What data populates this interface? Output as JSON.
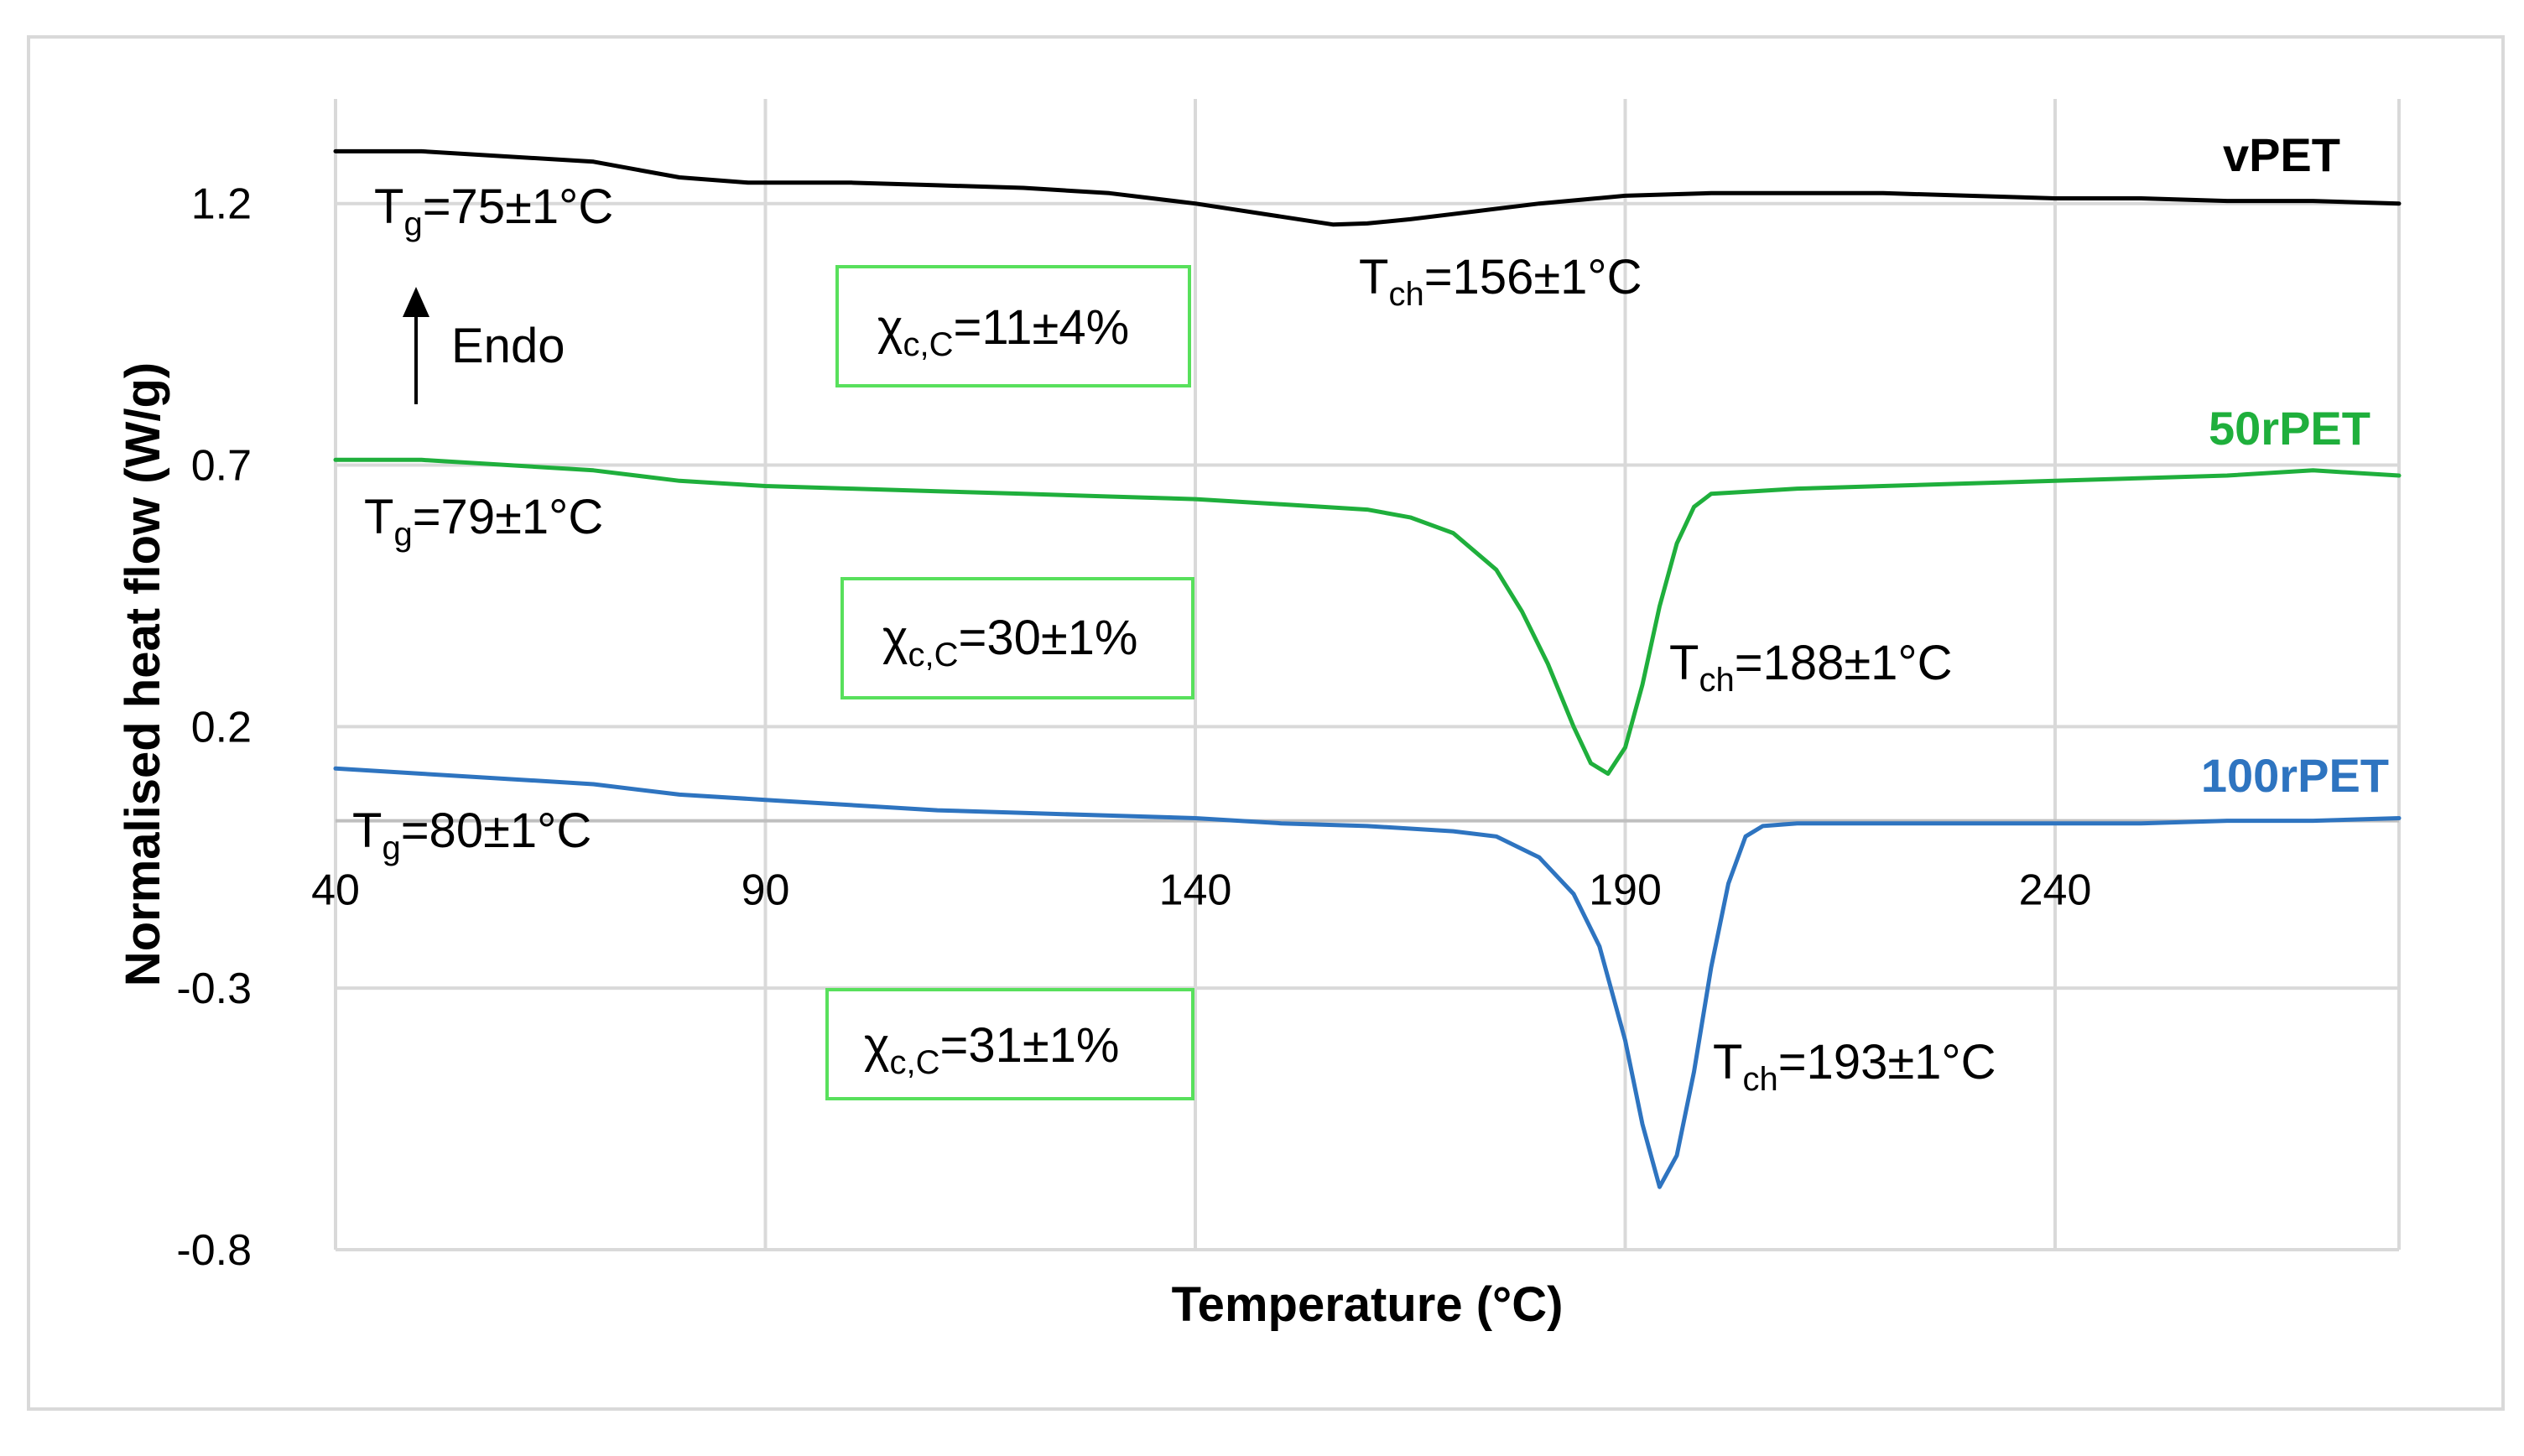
{
  "chart_data": {
    "type": "line",
    "xlabel": "Temperature (°C)",
    "ylabel": "Normalised heat flow (W/g)",
    "xlim": [
      40,
      280
    ],
    "ylim": [
      -0.8,
      1.4
    ],
    "x_ticks": [
      40,
      90,
      140,
      190,
      240
    ],
    "y_ticks": [
      1.2,
      0.7,
      0.2,
      -0.3,
      -0.8
    ],
    "y_tick_labels": [
      "1.2",
      "0.7",
      "0.2",
      "-0.3",
      "-0.8"
    ],
    "x_axis_at_y": 0.02,
    "grid": true,
    "endo_label": "Endo",
    "series": [
      {
        "name": "vPET",
        "color": "#000000",
        "x": [
          40,
          50,
          60,
          70,
          75,
          80,
          88,
          100,
          110,
          120,
          130,
          140,
          150,
          156,
          160,
          165,
          170,
          180,
          190,
          200,
          210,
          220,
          230,
          240,
          250,
          260,
          270,
          280
        ],
        "y": [
          1.3,
          1.3,
          1.29,
          1.28,
          1.265,
          1.25,
          1.24,
          1.24,
          1.235,
          1.23,
          1.22,
          1.2,
          1.175,
          1.16,
          1.162,
          1.17,
          1.18,
          1.2,
          1.215,
          1.22,
          1.22,
          1.22,
          1.215,
          1.21,
          1.21,
          1.205,
          1.205,
          1.2
        ],
        "annotations": [
          {
            "tg_sym": "T",
            "tg_sub": "g",
            "tg_val": "=75±1°C"
          },
          {
            "tch_sym": "T",
            "tch_sub": "ch",
            "tch_val": "=156±1°C"
          },
          {
            "chi_sym": "χ",
            "chi_sub": "c,C",
            "chi_val": "=11±4%"
          }
        ]
      },
      {
        "name": "50rPET",
        "color": "#1faf3c",
        "x": [
          40,
          50,
          60,
          70,
          80,
          90,
          100,
          110,
          120,
          130,
          140,
          150,
          160,
          165,
          170,
          175,
          178,
          181,
          184,
          186,
          188,
          190,
          192,
          194,
          196,
          198,
          200,
          205,
          210,
          220,
          230,
          240,
          250,
          260,
          270,
          280
        ],
        "y": [
          0.71,
          0.71,
          0.7,
          0.69,
          0.67,
          0.66,
          0.655,
          0.65,
          0.645,
          0.64,
          0.635,
          0.625,
          0.615,
          0.6,
          0.57,
          0.5,
          0.42,
          0.32,
          0.2,
          0.13,
          0.11,
          0.16,
          0.28,
          0.43,
          0.55,
          0.62,
          0.645,
          0.65,
          0.655,
          0.66,
          0.665,
          0.67,
          0.675,
          0.68,
          0.69,
          0.68
        ],
        "annotations": [
          {
            "tg_sym": "T",
            "tg_sub": "g",
            "tg_val": "=79±1°C"
          },
          {
            "tch_sym": "T",
            "tch_sub": "ch",
            "tch_val": "=188±1°C"
          },
          {
            "chi_sym": "χ",
            "chi_sub": "c,C",
            "chi_val": "=30±1%"
          }
        ]
      },
      {
        "name": "100rPET",
        "color": "#2e74c0",
        "x": [
          40,
          50,
          60,
          70,
          80,
          90,
          100,
          110,
          120,
          130,
          140,
          150,
          160,
          170,
          175,
          180,
          184,
          187,
          190,
          192,
          194,
          196,
          198,
          200,
          202,
          204,
          206,
          210,
          220,
          230,
          240,
          250,
          260,
          270,
          280
        ],
        "y": [
          0.12,
          0.11,
          0.1,
          0.09,
          0.07,
          0.06,
          0.05,
          0.04,
          0.035,
          0.03,
          0.025,
          0.015,
          0.01,
          0.0,
          -0.01,
          -0.05,
          -0.12,
          -0.22,
          -0.4,
          -0.56,
          -0.68,
          -0.62,
          -0.46,
          -0.26,
          -0.1,
          -0.01,
          0.01,
          0.015,
          0.015,
          0.015,
          0.015,
          0.015,
          0.02,
          0.02,
          0.025
        ],
        "annotations": [
          {
            "tg_sym": "T",
            "tg_sub": "g",
            "tg_val": "=80±1°C"
          },
          {
            "tch_sym": "T",
            "tch_sub": "ch",
            "tch_val": "=193±1°C"
          },
          {
            "chi_sym": "χ",
            "chi_sub": "c,C",
            "chi_val": "=31±1%"
          }
        ]
      }
    ]
  }
}
